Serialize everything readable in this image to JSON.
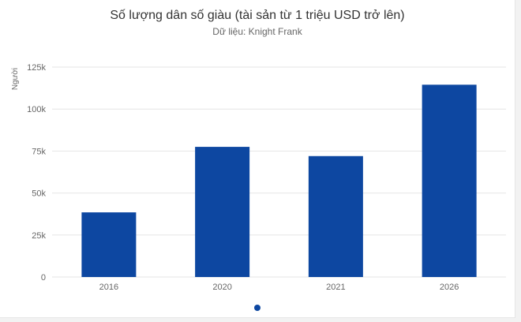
{
  "colors": {
    "bar": "#0d47a1",
    "grid": "#e6e6e6",
    "axis_text": "#666666",
    "dot": "#0d47a1"
  },
  "chart_data": {
    "type": "bar",
    "title": "Số lượng dân số giàu (tài sản từ 1 triệu USD trở lên)",
    "subtitle": "Dữ liệu: Knight Frank",
    "xlabel": "",
    "ylabel": "Người",
    "categories": [
      "2016",
      "2020",
      "2021",
      "2026"
    ],
    "values": [
      38500,
      77500,
      72000,
      114500
    ],
    "ylim": [
      0,
      125000
    ],
    "yticks": [
      0,
      25000,
      50000,
      75000,
      100000,
      125000
    ],
    "ytick_labels": [
      "0",
      "25k",
      "50k",
      "75k",
      "100k",
      "125k"
    ],
    "grid": true,
    "legend": "none"
  }
}
